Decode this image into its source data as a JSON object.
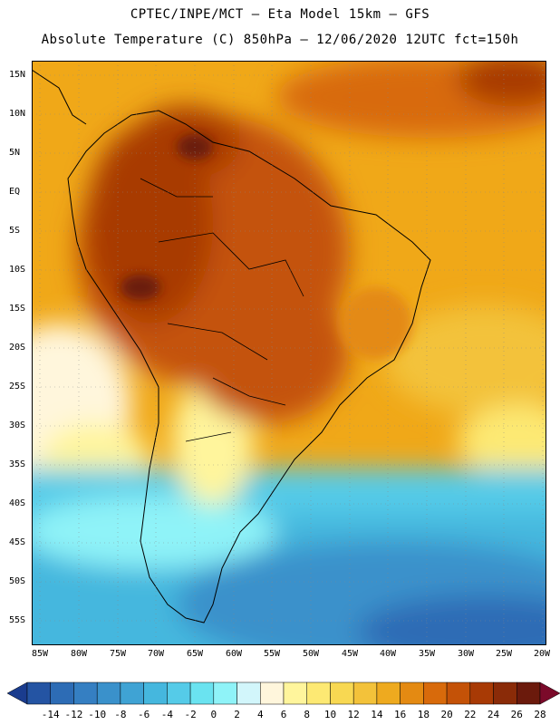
{
  "header": {
    "line1": "CPTEC/INPE/MCT —  Eta Model 15km — GFS",
    "line2": "Absolute Temperature (C) 850hPa — 12/06/2020 12UTC fct=150h"
  },
  "map": {
    "region": "South America",
    "lat_labels": [
      "15N",
      "10N",
      "5N",
      "EQ",
      "5S",
      "10S",
      "15S",
      "20S",
      "25S",
      "30S",
      "35S",
      "40S",
      "45S",
      "50S",
      "55S"
    ],
    "lon_labels": [
      "85W",
      "80W",
      "75W",
      "70W",
      "65W",
      "60W",
      "55W",
      "50W",
      "45W",
      "40W",
      "35W",
      "30W",
      "25W",
      "20W"
    ],
    "grid": true,
    "land_outline_color": "#000000"
  },
  "colorbar": {
    "labels": [
      "-14",
      "-12",
      "-10",
      "-8",
      "-6",
      "-4",
      "-2",
      "0",
      "2",
      "4",
      "6",
      "8",
      "10",
      "12",
      "14",
      "16",
      "18",
      "20",
      "22",
      "24",
      "26",
      "28"
    ],
    "colors": [
      "#1a3c8e",
      "#2454a3",
      "#2d6cb5",
      "#357fc2",
      "#3a91cb",
      "#3fa3d4",
      "#45b7de",
      "#55cbe8",
      "#6ae3f0",
      "#8ff3f8",
      "#d2f6fb",
      "#fff6dc",
      "#fff59c",
      "#fde973",
      "#f8d852",
      "#f3c23a",
      "#eeaa1f",
      "#e48a12",
      "#d86a0b",
      "#c45207",
      "#a83a05",
      "#8a2b08",
      "#6b1a0c",
      "#7b0a2a"
    ]
  }
}
